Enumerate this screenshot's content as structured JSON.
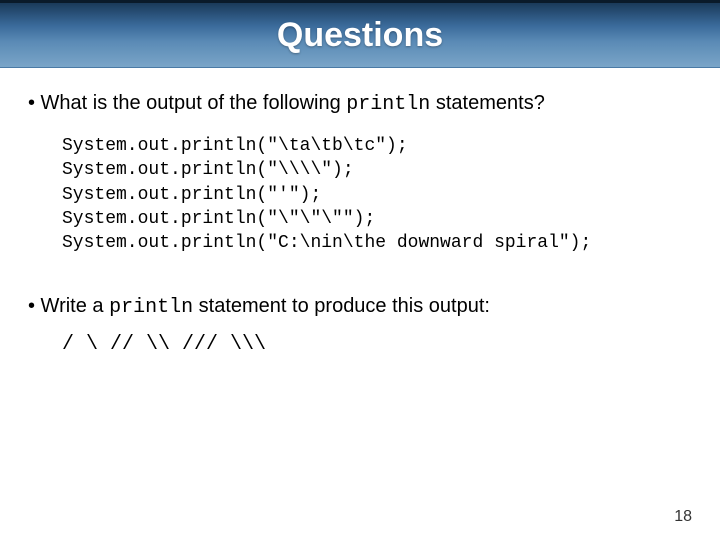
{
  "slide": {
    "title": "Questions",
    "title_bar": {
      "gradient_top": "#1a3a5a",
      "gradient_mid": "#5a8ab5",
      "gradient_bottom": "#7aa5c8",
      "title_color": "#ffffff",
      "title_fontsize": 34,
      "title_fontfamily": "Verdana",
      "title_fontweight": "bold"
    },
    "background_color": "#ffffff",
    "body_fontfamily": "Arial",
    "body_fontsize": 20,
    "code_fontfamily": "Courier New",
    "code_fontsize": 18
  },
  "question1": {
    "prefix": "• What is the output of the following ",
    "code_word": "println",
    "suffix": " statements?",
    "code_lines": [
      "System.out.println(\"\\ta\\tb\\tc\");",
      "System.out.println(\"\\\\\\\\\");",
      "System.out.println(\"'\");",
      "System.out.println(\"\\\"\\\"\\\"\");",
      "System.out.println(\"C:\\nin\\the downward spiral\");"
    ]
  },
  "question2": {
    "prefix": "• Write a ",
    "code_word": "println",
    "suffix": " statement to produce this output:",
    "output": "/ \\ // \\\\ /// \\\\\\"
  },
  "page_number": "18"
}
